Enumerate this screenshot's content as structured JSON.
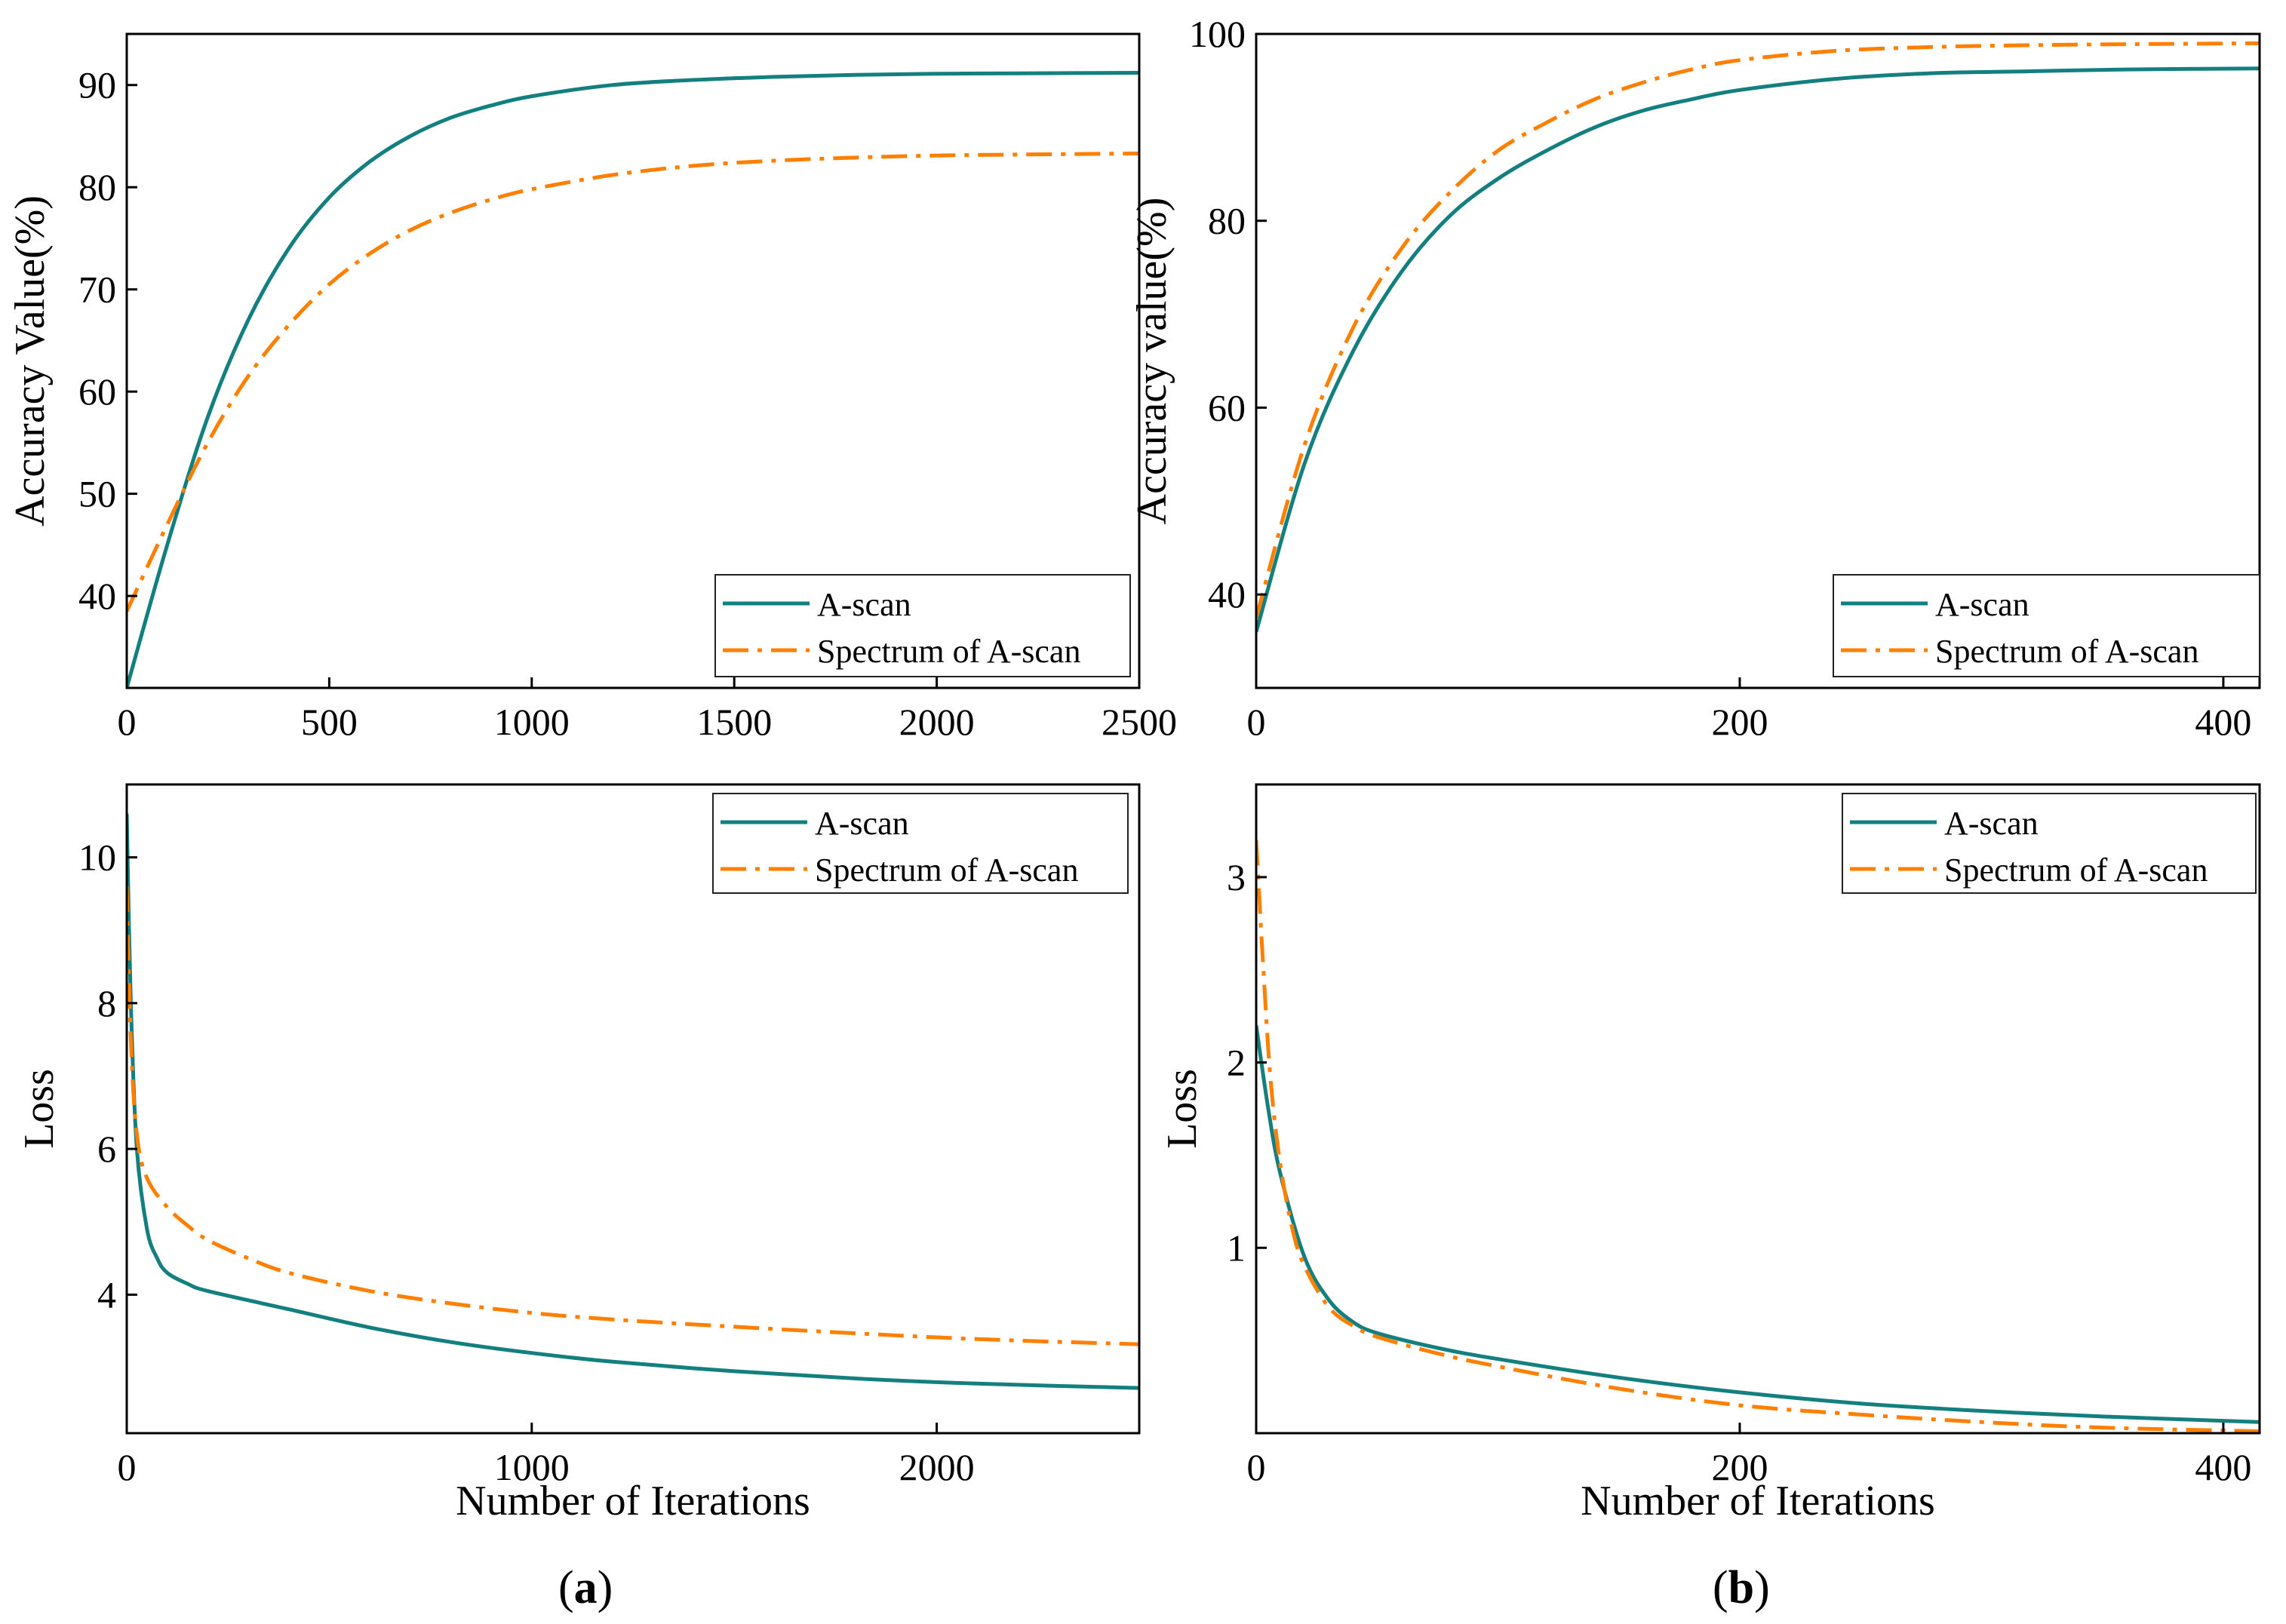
{
  "figure": {
    "caption_a_letter": "a",
    "caption_b_letter": "b",
    "caption_open": "(",
    "caption_close": ")"
  },
  "colors": {
    "a_scan": "#137f7f",
    "spectrum": "#ff8000",
    "axis": "#000000"
  },
  "chart_data": [
    {
      "id": "a-accuracy",
      "type": "line",
      "panel": "a",
      "title": "",
      "xlabel": "",
      "ylabel": "Accuracy  Value(%)",
      "xlim": [
        0,
        2500
      ],
      "ylim": [
        31,
        95
      ],
      "xticks": [
        0,
        500,
        1000,
        1500,
        2000,
        2500
      ],
      "yticks": [
        40,
        50,
        60,
        70,
        80,
        90
      ],
      "legend_position": "bottom-right",
      "series": [
        {
          "name": "A-scan",
          "style": "solid",
          "color": "#137f7f",
          "x": [
            0,
            100,
            200,
            300,
            400,
            500,
            600,
            700,
            800,
            900,
            1000,
            1200,
            1400,
            1600,
            1800,
            2000,
            2200,
            2500
          ],
          "y": [
            31.0,
            45.0,
            57.5,
            67.0,
            74.0,
            79.0,
            82.5,
            85.0,
            86.8,
            88.0,
            88.9,
            90.0,
            90.5,
            90.8,
            91.0,
            91.1,
            91.15,
            91.2
          ]
        },
        {
          "name": "Spectrum of A-scan",
          "style": "dashdot",
          "color": "#ff8000",
          "x": [
            0,
            100,
            200,
            300,
            400,
            500,
            600,
            700,
            800,
            900,
            1000,
            1200,
            1400,
            1600,
            1800,
            2000,
            2200,
            2500
          ],
          "y": [
            38.5,
            47.0,
            55.0,
            61.5,
            66.5,
            70.5,
            73.5,
            75.8,
            77.5,
            78.8,
            79.8,
            81.2,
            82.1,
            82.6,
            82.9,
            83.1,
            83.2,
            83.3
          ]
        }
      ]
    },
    {
      "id": "b-accuracy",
      "type": "line",
      "panel": "b",
      "title": "",
      "xlabel": "",
      "ylabel": "Accuracy  value(%)",
      "xlim": [
        0,
        415
      ],
      "ylim": [
        30,
        100
      ],
      "xticks": [
        0,
        200,
        400
      ],
      "yticks": [
        40,
        60,
        80,
        100
      ],
      "legend_position": "bottom-right",
      "series": [
        {
          "name": "A-scan",
          "style": "solid",
          "color": "#137f7f",
          "x": [
            0,
            20,
            40,
            60,
            80,
            100,
            120,
            140,
            160,
            180,
            200,
            240,
            280,
            320,
            360,
            415
          ],
          "y": [
            36.0,
            54.0,
            66.0,
            74.5,
            80.5,
            84.5,
            87.5,
            90.0,
            91.8,
            93.0,
            94.0,
            95.2,
            95.8,
            96.0,
            96.2,
            96.3
          ]
        },
        {
          "name": "Spectrum of  A-scan",
          "style": "dashdot",
          "color": "#ff8000",
          "x": [
            0,
            20,
            40,
            60,
            80,
            100,
            120,
            140,
            160,
            180,
            200,
            240,
            280,
            320,
            360,
            415
          ],
          "y": [
            37.5,
            56.0,
            68.5,
            77.0,
            83.0,
            87.5,
            90.5,
            93.0,
            94.8,
            96.2,
            97.2,
            98.2,
            98.6,
            98.8,
            98.9,
            99.0
          ]
        }
      ]
    },
    {
      "id": "a-loss",
      "type": "line",
      "panel": "a",
      "title": "",
      "xlabel": "Number of Iterations",
      "ylabel": "Loss",
      "xlim": [
        0,
        2500
      ],
      "ylim": [
        2.1,
        11.0
      ],
      "xticks": [
        0,
        1000,
        2000
      ],
      "yticks": [
        4,
        6,
        8,
        10
      ],
      "legend_position": "top-right",
      "series": [
        {
          "name": "A-scan",
          "style": "solid",
          "color": "#137f7f",
          "x": [
            0,
            10,
            25,
            50,
            75,
            100,
            150,
            200,
            400,
            600,
            800,
            1000,
            1200,
            1500,
            1800,
            2100,
            2500
          ],
          "y": [
            10.6,
            8.0,
            6.0,
            4.9,
            4.5,
            4.3,
            4.15,
            4.05,
            3.8,
            3.55,
            3.35,
            3.2,
            3.08,
            2.95,
            2.85,
            2.78,
            2.72
          ]
        },
        {
          "name": "Spectrum of A-scan",
          "style": "dashdot",
          "color": "#ff8000",
          "x": [
            0,
            10,
            25,
            50,
            100,
            150,
            200,
            300,
            400,
            600,
            800,
            1000,
            1200,
            1500,
            1800,
            2100,
            2500
          ],
          "y": [
            9.6,
            7.5,
            6.2,
            5.6,
            5.2,
            4.95,
            4.75,
            4.5,
            4.3,
            4.05,
            3.88,
            3.75,
            3.66,
            3.56,
            3.47,
            3.39,
            3.32
          ]
        }
      ]
    },
    {
      "id": "b-loss",
      "type": "line",
      "panel": "b",
      "title": "",
      "xlabel": "Number of Iterations",
      "ylabel": "Loss",
      "xlim": [
        0,
        415
      ],
      "ylim": [
        0.0,
        3.5
      ],
      "xticks": [
        0,
        200,
        400
      ],
      "yticks": [
        1,
        2,
        3
      ],
      "legend_position": "top-right",
      "series": [
        {
          "name": "A-scan",
          "style": "solid",
          "color": "#137f7f",
          "x": [
            0,
            5,
            10,
            20,
            30,
            40,
            50,
            75,
            100,
            150,
            200,
            250,
            300,
            350,
            415
          ],
          "y": [
            2.2,
            1.75,
            1.4,
            0.95,
            0.72,
            0.6,
            0.54,
            0.46,
            0.4,
            0.3,
            0.22,
            0.16,
            0.12,
            0.09,
            0.06
          ]
        },
        {
          "name": "Spectrum of A-scan",
          "style": "dashdot",
          "color": "#ff8000",
          "x": [
            0,
            3,
            6,
            10,
            15,
            20,
            30,
            40,
            50,
            75,
            100,
            150,
            200,
            250,
            300,
            350,
            415
          ],
          "y": [
            3.2,
            2.5,
            1.9,
            1.45,
            1.1,
            0.9,
            0.68,
            0.58,
            0.52,
            0.43,
            0.36,
            0.24,
            0.15,
            0.1,
            0.06,
            0.03,
            0.01
          ]
        }
      ]
    }
  ]
}
